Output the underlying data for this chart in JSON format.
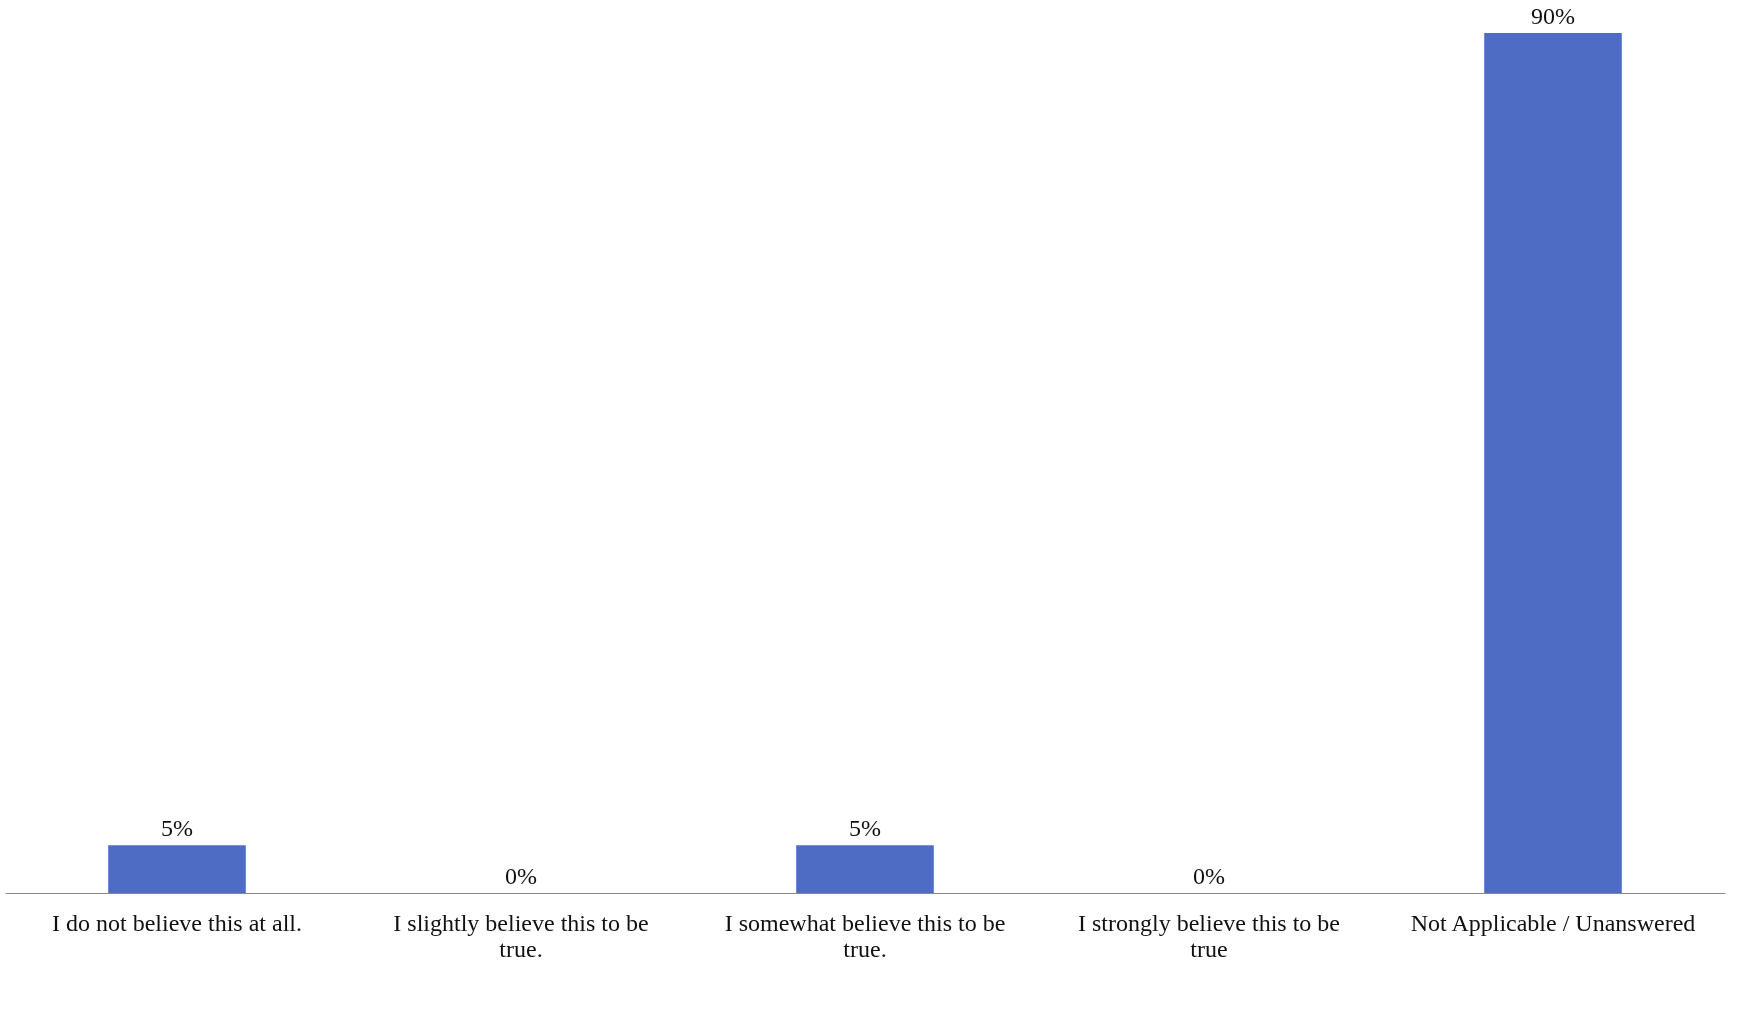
{
  "chart_data": {
    "type": "bar",
    "categories": [
      "I do not believe this at all.",
      "I slightly believe this to be true.",
      "I somewhat believe this to be true.",
      "I strongly believe this to be true",
      "Not Applicable / Unanswered"
    ],
    "values": [
      5,
      0,
      5,
      0,
      90
    ],
    "color": "#4e6cc4",
    "data_labels": true,
    "value_labels": [
      "5%",
      "0%",
      "5%",
      "0%",
      "90%"
    ],
    "grid": false
  }
}
